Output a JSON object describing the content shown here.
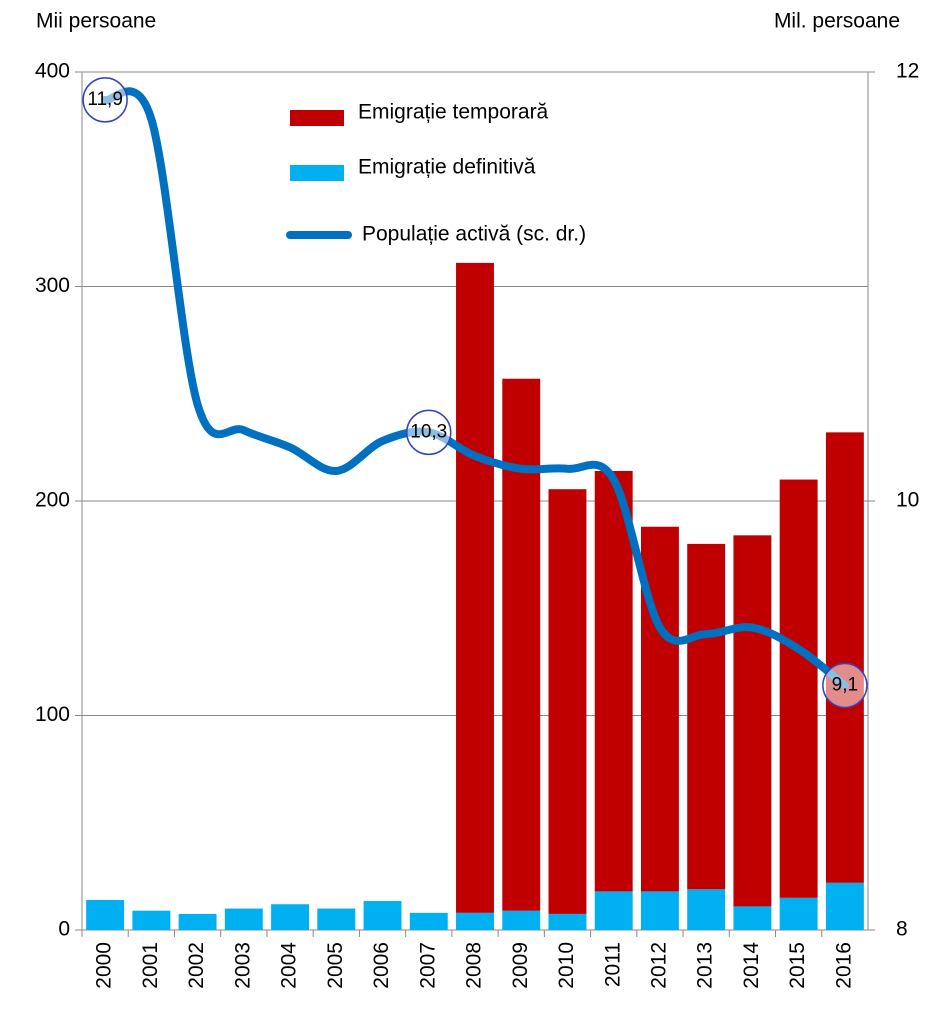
{
  "chart_data": {
    "type": "bar+line",
    "y_label": "Mii  persoane",
    "y2_label": "Mil. persoane",
    "categories": [
      "2000",
      "2001",
      "2002",
      "2003",
      "2004",
      "2005",
      "2006",
      "2007",
      "2008",
      "2009",
      "2010",
      "2011",
      "2012",
      "2013",
      "2014",
      "2015",
      "2016"
    ],
    "series": [
      {
        "name": "Emigrație temporară",
        "type": "bar",
        "color": "#c00000",
        "values": [
          null,
          null,
          null,
          null,
          null,
          null,
          null,
          null,
          303,
          248,
          198,
          196,
          170,
          161,
          173,
          195,
          210
        ]
      },
      {
        "name": "Emigrație definitivă",
        "type": "bar",
        "color": "#00b0f0",
        "values": [
          14,
          9,
          7.5,
          10,
          12,
          10,
          13.5,
          8,
          8,
          9,
          7.5,
          18,
          18,
          19,
          11,
          15,
          22
        ]
      },
      {
        "name": "Populație activă (sc. dr.)",
        "type": "line",
        "axis": "y2",
        "color": "#0070c0",
        "values": [
          11.87,
          11.78,
          10.45,
          10.33,
          10.25,
          10.14,
          10.28,
          10.32,
          10.21,
          10.15,
          10.15,
          10.1,
          9.41,
          9.38,
          9.41,
          9.31,
          9.14
        ],
        "value_labels": [
          "11,9",
          null,
          null,
          null,
          null,
          null,
          null,
          "10,3",
          null,
          null,
          null,
          null,
          null,
          null,
          null,
          null,
          "9,1"
        ]
      }
    ],
    "ylim": [
      0,
      400
    ],
    "yticks": [
      0,
      100,
      200,
      300,
      400
    ],
    "y2lim": [
      8,
      12
    ],
    "y2ticks": [
      8,
      10,
      12
    ],
    "grid": true
  }
}
